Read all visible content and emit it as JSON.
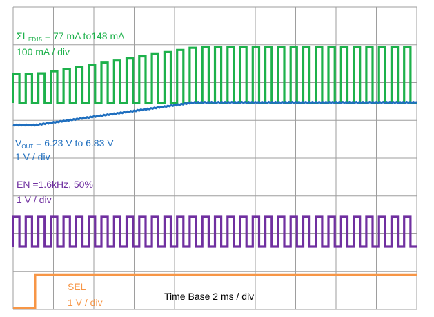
{
  "chart_data": {
    "type": "line",
    "title": "",
    "xlabel": "Time Base 2 ms / div",
    "ylabel": "",
    "grid": true,
    "divisions": {
      "x": 10,
      "y": 8
    },
    "time_per_div_ms": 2,
    "colors": {
      "led": "#1db14b",
      "vout": "#1f6fbf",
      "en": "#7030a0",
      "sel": "#f79646",
      "grid": "#9e9e9e"
    },
    "series": [
      {
        "key": "led",
        "label_sigma": "ΣI",
        "label_sub": "LED15",
        "label_rest": " = 77 mA to148 mA",
        "scale": "100 mA / div",
        "waveform": "pulsed",
        "low_mA": 0,
        "start_mA": 77,
        "end_mA": 148
      },
      {
        "key": "vout",
        "label_main": "V",
        "label_sub": "OUT",
        "label_rest": " = 6.23 V to 6.83 V",
        "scale": "1 V / div",
        "start_V": 6.23,
        "end_V": 6.83
      },
      {
        "key": "en",
        "label": "EN =1.6kHz, 50%",
        "scale": "1 V / div",
        "frequency_kHz": 1.6,
        "duty_cycle_pct": 50
      },
      {
        "key": "sel",
        "label": "SEL",
        "scale": "1 V / div",
        "step_time_ms": 1.1
      }
    ]
  }
}
